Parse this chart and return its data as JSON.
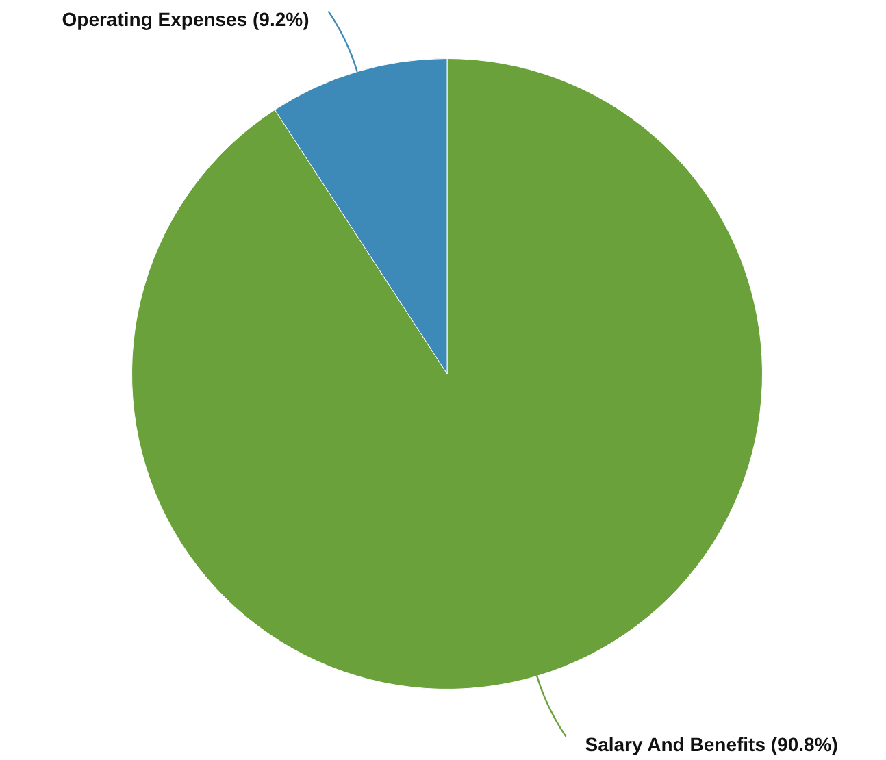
{
  "chart_data": {
    "type": "pie",
    "categories": [
      "Salary And Benefits",
      "Operating Expenses"
    ],
    "values": [
      90.8,
      9.2
    ],
    "colors": [
      "#6aa13a",
      "#3d8ab8"
    ],
    "value_labels": [
      "(90.8%)",
      "(9.2%)"
    ],
    "legend": false
  }
}
